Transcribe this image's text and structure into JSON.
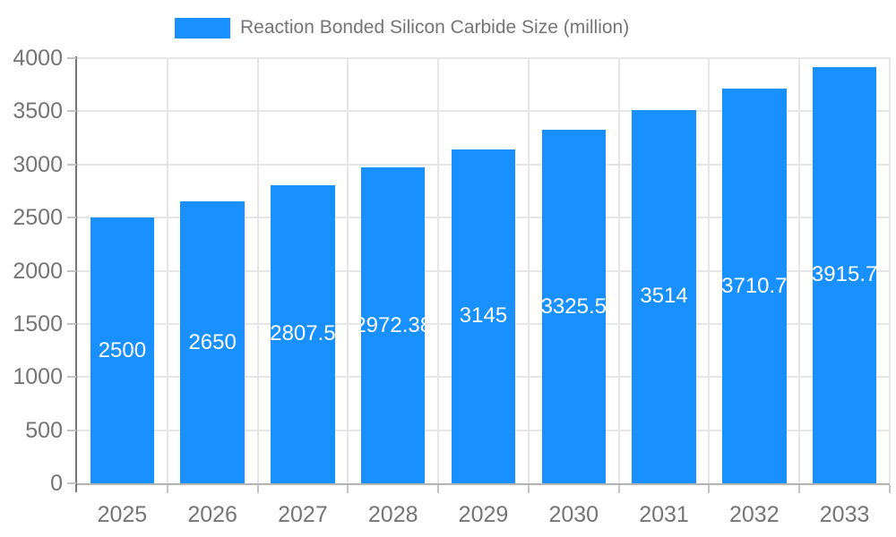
{
  "chart_data": {
    "type": "bar",
    "title": "Reaction Bonded Silicon Carbide Size (million)",
    "legend_position": "top",
    "categories": [
      "2025",
      "2026",
      "2027",
      "2028",
      "2029",
      "2030",
      "2031",
      "2032",
      "2033"
    ],
    "series": [
      {
        "name": "Reaction Bonded Silicon Carbide Size (million)",
        "values": [
          2500,
          2650,
          2807.5,
          2972.38,
          3145,
          3325.5,
          3514,
          3710.7,
          3915.7
        ]
      }
    ],
    "bar_labels": [
      "2500",
      "2650",
      "2807.5",
      "2972.38",
      "3145",
      "3325.5",
      "3514",
      "3710.7",
      "3915.7"
    ],
    "xlabel": "",
    "ylabel": "",
    "ylim": [
      0,
      4000
    ],
    "yticks": [
      0,
      500,
      1000,
      1500,
      2000,
      2500,
      3000,
      3500,
      4000
    ],
    "grid": true,
    "colors": {
      "bar": "#1890ff",
      "bar_label_text": "#ffffff",
      "axis_text": "#757575",
      "y_axis_line": "#757575",
      "x_axis_line": "#b3b3b3",
      "gridline": "#e6e6e6",
      "tick": "#c4c4c4",
      "background": "#ffffff"
    }
  }
}
